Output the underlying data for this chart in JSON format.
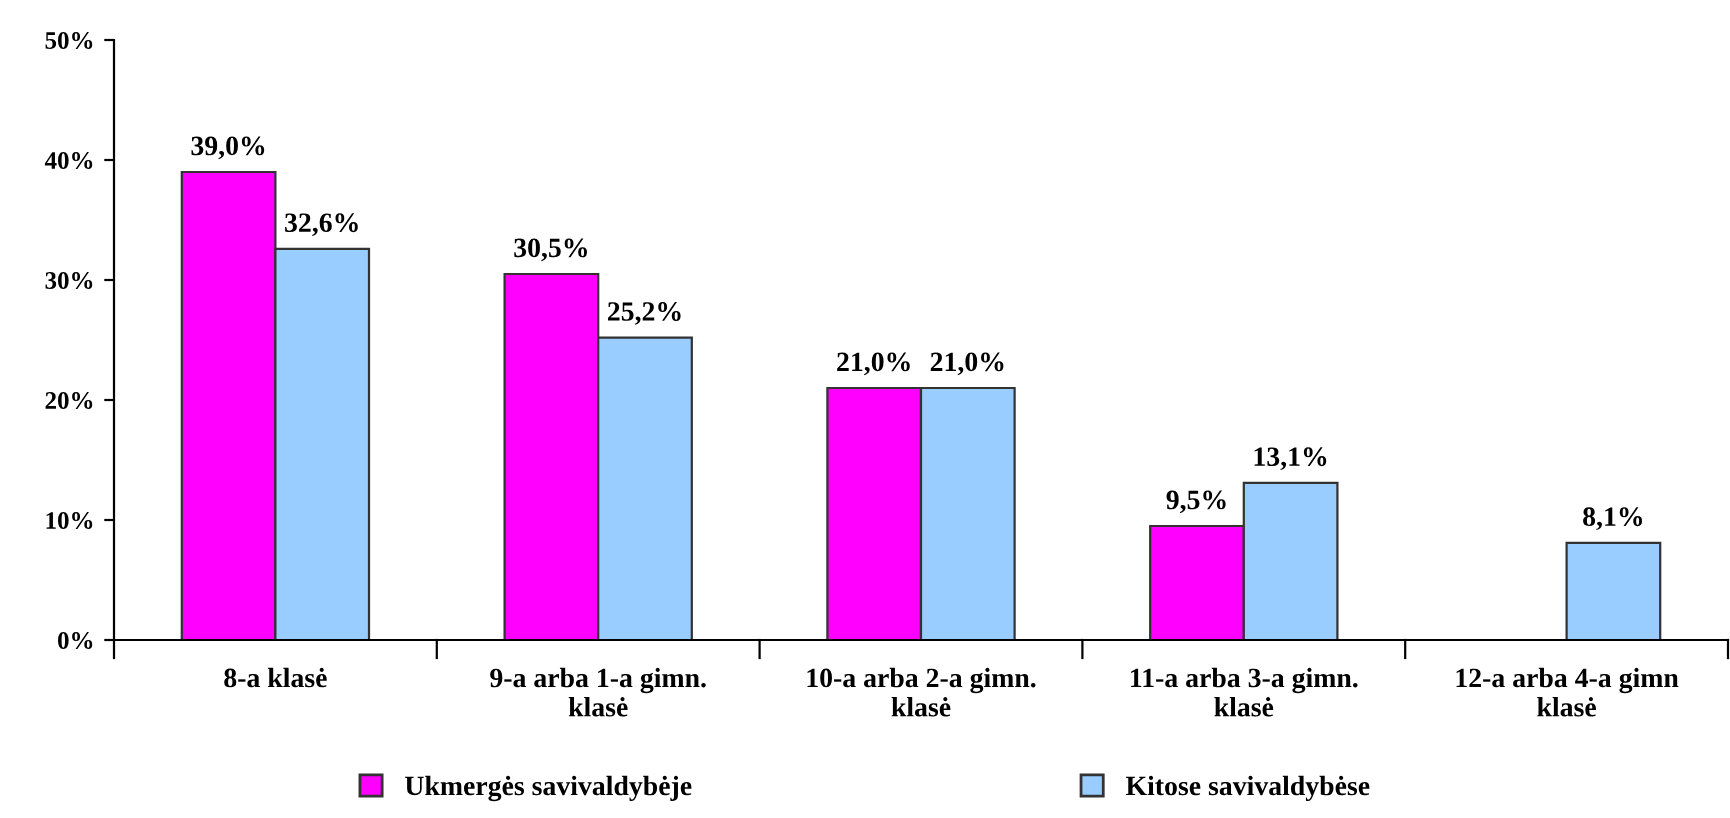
{
  "chart_data": {
    "type": "bar",
    "categories": [
      "8-a klasė",
      "9-a arba 1-a gimn.\nklasė",
      "10-a arba 2-a gimn.\nklasė",
      "11-a arba 3-a gimn.\nklasė",
      "12-a arba 4-a gimn\nklasė"
    ],
    "series": [
      {
        "name": "Ukmergės savivaldybėje",
        "color": "#ff00ff",
        "values": [
          39.0,
          30.5,
          21.0,
          9.5,
          null
        ],
        "value_labels": [
          "39,0%",
          "30,5%",
          "21,0%",
          "9,5%",
          null
        ]
      },
      {
        "name": "Kitose savivaldybėse",
        "color": "#99ccff",
        "values": [
          32.6,
          25.2,
          21.0,
          13.1,
          8.1
        ],
        "value_labels": [
          "32,6%",
          "25,2%",
          "21,0%",
          "13,1%",
          "8,1%"
        ]
      }
    ],
    "ylim": [
      0,
      50
    ],
    "yticks": [
      {
        "value": 0,
        "label": "0%"
      },
      {
        "value": 10,
        "label": "10%"
      },
      {
        "value": 20,
        "label": "20%"
      },
      {
        "value": 30,
        "label": "30%"
      },
      {
        "value": 40,
        "label": "40%"
      },
      {
        "value": 50,
        "label": "50%"
      }
    ],
    "grid": false,
    "legend": "bottom"
  }
}
